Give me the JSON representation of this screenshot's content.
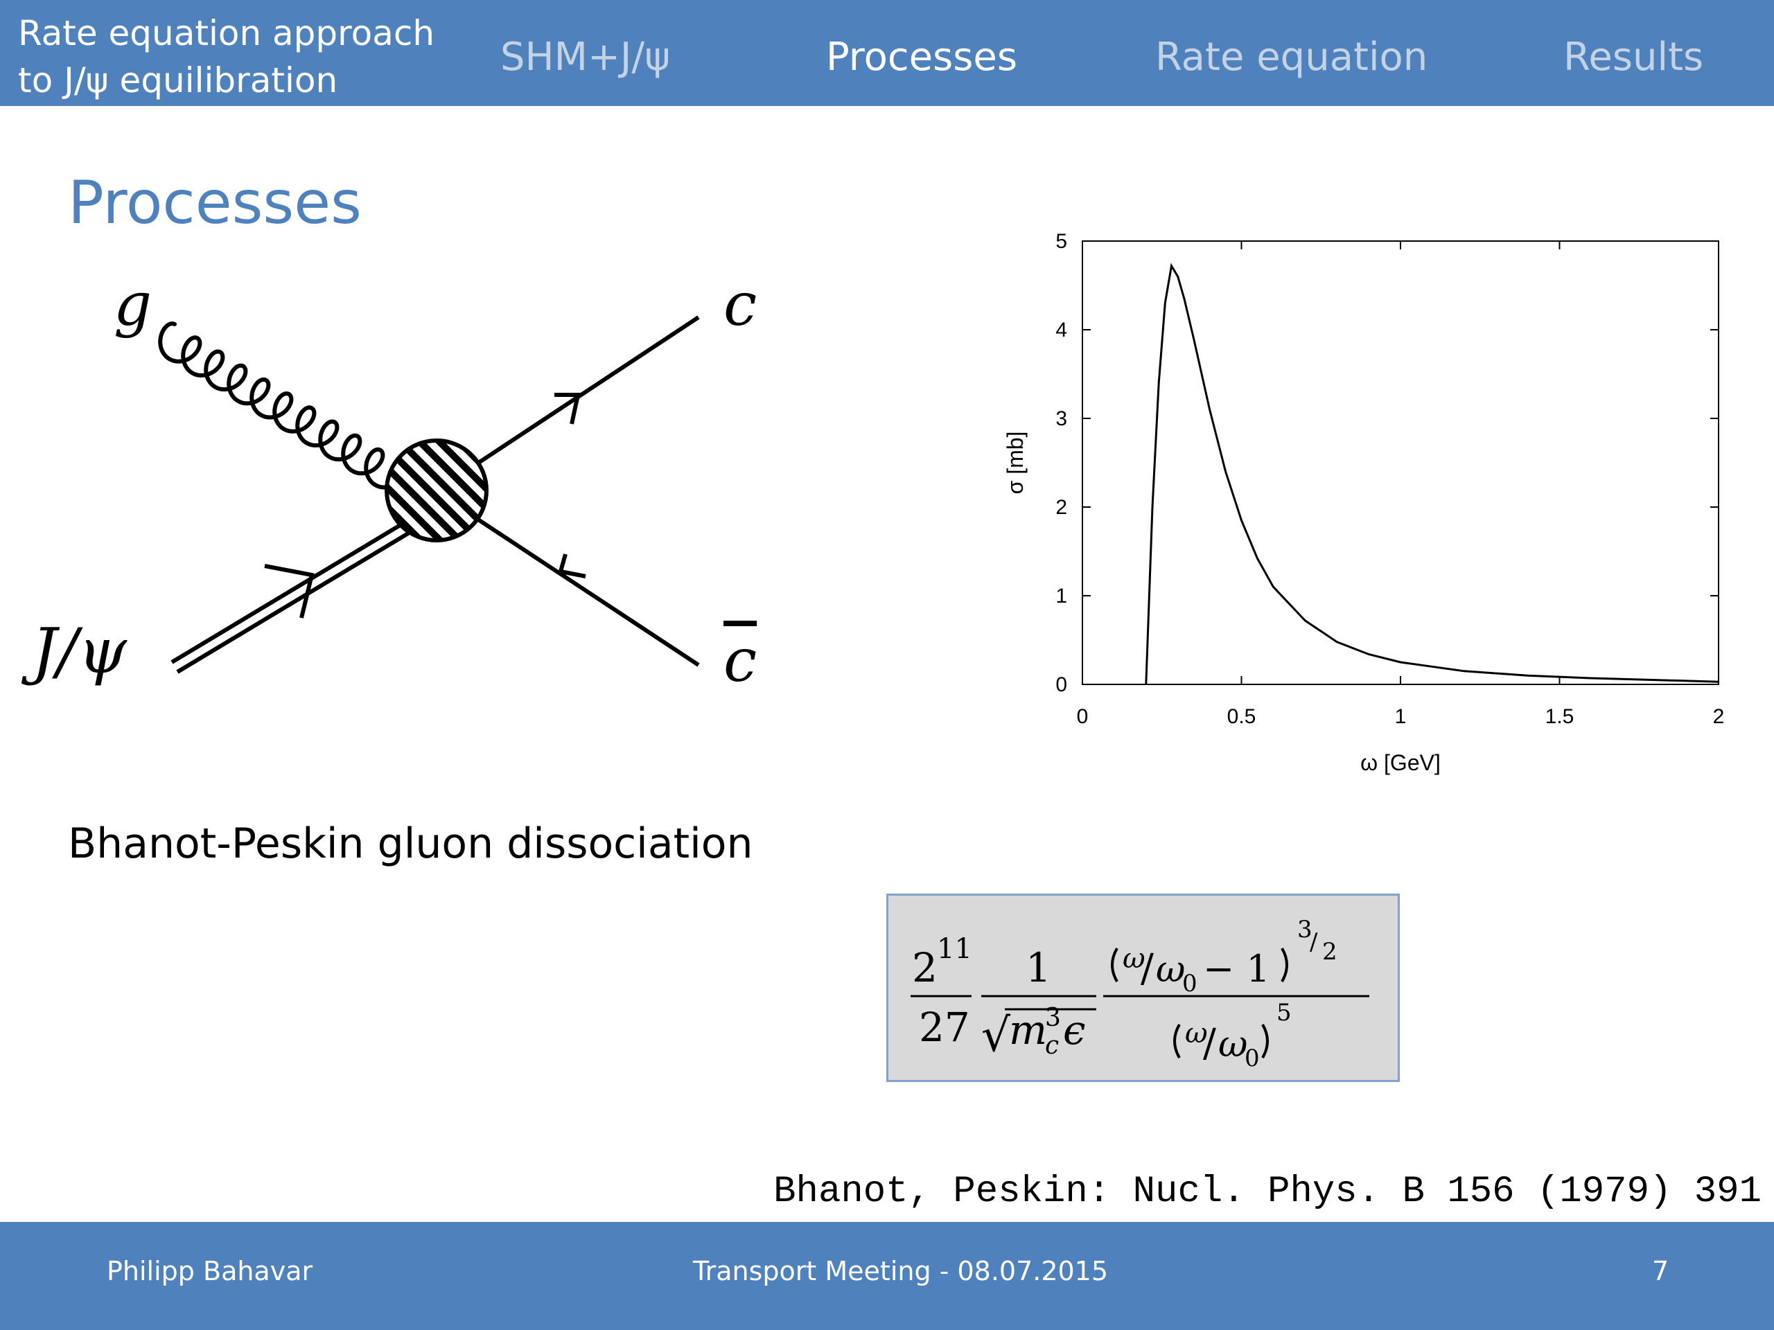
{
  "header": {
    "deck_title_line1": "Rate equation approach",
    "deck_title_line2": "to J/ψ equilibration",
    "nav": [
      {
        "label": "SHM+J/ψ",
        "active": false
      },
      {
        "label": "Processes",
        "active": true
      },
      {
        "label": "Rate equation",
        "active": false
      },
      {
        "label": "Results",
        "active": false
      }
    ],
    "colors": {
      "bar": "#4f81bd",
      "inactive": "#c4d2e5",
      "active": "#ffffff"
    }
  },
  "slide": {
    "title": "Processes",
    "caption": "Bhanot-Peskin gluon dissociation",
    "reference": "Bhanot, Peskin: Nucl. Phys. B 156 (1979) 391"
  },
  "diagram": {
    "labels": {
      "gluon": "g",
      "charm": "c",
      "anticharm": "c",
      "jpsi": "J/ψ"
    },
    "icons": [
      "gluon-line",
      "double-line",
      "fermion-arrow",
      "hatched-vertex-blob"
    ]
  },
  "formula": {
    "coef_num_base": "2",
    "coef_num_exp": "11",
    "coef_den": "27",
    "one": "1",
    "sqrt_sign": "√",
    "mass": "m",
    "mass_exp": "3",
    "mass_sub": "c",
    "epsilon": "ϵ",
    "omega": "ω",
    "omega0": "ω",
    "omega0_sub": "0",
    "slash": "/",
    "minus_one": "− 1",
    "exp_num": "3",
    "exp_den": "2",
    "den_exp": "5"
  },
  "chart_data": {
    "type": "line",
    "title": "",
    "xlabel": "ω [GeV]",
    "ylabel": "σ [mb]",
    "xlim": [
      0,
      2
    ],
    "ylim": [
      0,
      5
    ],
    "x_ticks": [
      "0",
      "0.5",
      "1",
      "1.5",
      "2"
    ],
    "y_ticks": [
      "0",
      "1",
      "2",
      "3",
      "4",
      "5"
    ],
    "grid": false,
    "series": [
      {
        "x": [
          0.2,
          0.22,
          0.24,
          0.26,
          0.28,
          0.3,
          0.32,
          0.35,
          0.4,
          0.45,
          0.5,
          0.55,
          0.6,
          0.7,
          0.8,
          0.9,
          1.0,
          1.2,
          1.4,
          1.6,
          1.8,
          2.0
        ],
        "y": [
          0.0,
          2.0,
          3.4,
          4.3,
          4.72,
          4.6,
          4.35,
          3.9,
          3.1,
          2.4,
          1.85,
          1.42,
          1.1,
          0.72,
          0.48,
          0.34,
          0.25,
          0.15,
          0.1,
          0.07,
          0.05,
          0.03
        ]
      }
    ]
  },
  "footer": {
    "author": "Philipp Bahavar",
    "event": "Transport Meeting -  08.07.2015",
    "page": "7"
  }
}
